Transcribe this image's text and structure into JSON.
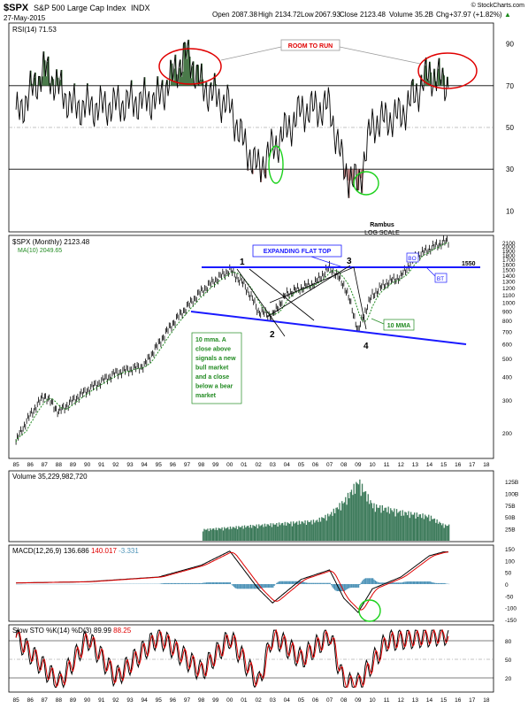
{
  "header": {
    "symbol": "$SPX",
    "name": "S&P 500 Large Cap Index",
    "exchange": "INDX",
    "date": "27-May-2015",
    "open_label": "Open",
    "open": "2087.38",
    "high_label": "High",
    "high": "2134.72",
    "low_label": "Low",
    "low": "2067.93",
    "close_label": "Close",
    "close": "2123.48",
    "volume_label": "Volume",
    "volume": "35.2B",
    "chg_label": "Chg",
    "chg": "+37.97 (+1.82%)",
    "watermark": "© StockCharts.com",
    "up_arrow": "▲"
  },
  "rsi_panel": {
    "legend": "RSI(14) 71.53",
    "ticks": [
      "90",
      "70",
      "50",
      "30",
      "10"
    ],
    "annotation": "ROOM TO RUN"
  },
  "price_panel": {
    "legend_main": "$SPX (Monthly) 2123.48",
    "legend_ma": "MA(10) 2049.65",
    "author": "Rambus",
    "scale_note": "LOG SCALE",
    "title_box": "EXPANDING FLAT TOP",
    "level_label": "1550",
    "bo_label": "BO",
    "bt_label": "BT",
    "mma_label": "10 MMA",
    "note_lines": [
      "10 mma. A",
      "close above",
      "signals a new",
      "bull market",
      "and a close",
      "below a bear",
      "market"
    ],
    "points": [
      "1",
      "2",
      "3",
      "4"
    ],
    "yticks": [
      "2100",
      "2000",
      "1900",
      "1800",
      "1700",
      "1600",
      "1500",
      "1400",
      "1300",
      "1200",
      "1100",
      "1000",
      "900",
      "800",
      "700",
      "600",
      "500",
      "400",
      "300",
      "200"
    ]
  },
  "x_axis_labels": [
    "85",
    "86",
    "87",
    "88",
    "89",
    "90",
    "91",
    "92",
    "93",
    "94",
    "95",
    "96",
    "97",
    "98",
    "99",
    "00",
    "01",
    "02",
    "03",
    "04",
    "05",
    "06",
    "07",
    "08",
    "09",
    "10",
    "11",
    "12",
    "13",
    "14",
    "15",
    "16",
    "17",
    "18"
  ],
  "volume_panel": {
    "legend": "Volume 35,229,982,720",
    "ticks": [
      "125B",
      "100B",
      "75B",
      "50B",
      "25B"
    ]
  },
  "macd_panel": {
    "legend_name": "MACD(12,26,9)",
    "macd_value": "136.686",
    "signal_value": "140.017",
    "hist_value": "-3.331",
    "ticks": [
      "150",
      "100",
      "50",
      "0",
      "-50",
      "-100",
      "-150"
    ]
  },
  "sto_panel": {
    "legend_name": "Slow STO %K(14) %D(3)",
    "k_value": "89.99",
    "d_value": "88.25",
    "ticks": [
      "80",
      "50",
      "20"
    ]
  },
  "colors": {
    "accent_blue": "#1a1aff",
    "ma_green": "#228b22",
    "annotation_red": "#e00000",
    "volume_green": "#3c7a5a",
    "macd_hist": "#4f94b8",
    "rsi_fill": "#4a7a4a",
    "rsi_fill_low": "#b77c7c"
  },
  "chart_data": [
    {
      "type": "line",
      "name_printed": "RSI(14)",
      "x_years": [
        1985,
        1987,
        1989,
        1991,
        1993,
        1995,
        1997,
        1998,
        2000,
        2001,
        2002,
        2003,
        2005,
        2007,
        2008,
        2009,
        2010,
        2012,
        2014,
        2015
      ],
      "values": [
        55,
        78,
        60,
        60,
        62,
        64,
        86,
        70,
        60,
        42,
        30,
        40,
        58,
        60,
        30,
        22,
        52,
        56,
        76,
        71.53
      ],
      "ylim": [
        0,
        100
      ],
      "reference_lines": [
        70,
        50,
        30
      ]
    },
    {
      "type": "line",
      "series": [
        {
          "name": "$SPX",
          "x_years": [
            1985,
            1987,
            1988,
            1990,
            1992,
            1994,
            1995,
            1997,
            1998,
            2000,
            2001,
            2002,
            2003,
            2004,
            2006,
            2007,
            2008,
            2009,
            2010,
            2011,
            2012,
            2013,
            2014,
            2015
          ],
          "values": [
            180,
            320,
            260,
            340,
            420,
            460,
            600,
            950,
            1150,
            1500,
            1250,
            900,
            850,
            1120,
            1280,
            1550,
            1250,
            700,
            1100,
            1280,
            1380,
            1750,
            1950,
            2123.48
          ]
        }
      ],
      "scale": "log",
      "ylim": [
        150,
        2200
      ],
      "reference_lines": [
        1550
      ]
    },
    {
      "type": "bar",
      "name_printed": "Volume",
      "unit": "B",
      "x_years": [
        1998,
        2000,
        2002,
        2004,
        2006,
        2007,
        2008,
        2009,
        2010,
        2012,
        2013,
        2014,
        2015
      ],
      "values": [
        25,
        30,
        35,
        40,
        45,
        60,
        90,
        135,
        80,
        65,
        60,
        55,
        35
      ],
      "ylim": [
        0,
        140
      ]
    },
    {
      "type": "line",
      "name_printed": "MACD(12,26,9)",
      "x_years": [
        1985,
        1990,
        1995,
        1998,
        2000,
        2002,
        2003,
        2005,
        2007,
        2008,
        2009,
        2010,
        2012,
        2014,
        2015
      ],
      "values": [
        5,
        10,
        30,
        80,
        140,
        -20,
        -80,
        20,
        60,
        -60,
        -120,
        -20,
        30,
        120,
        136.686
      ],
      "ylim": [
        -150,
        150
      ]
    },
    {
      "type": "line",
      "name_printed": "Slow STO %K(14) %D(3)",
      "x_years": [
        1985,
        1988,
        1990,
        1992,
        1995,
        1998,
        2000,
        2002,
        2003,
        2005,
        2007,
        2008,
        2009,
        2011,
        2013,
        2015
      ],
      "values": [
        85,
        10,
        85,
        20,
        88,
        30,
        85,
        10,
        90,
        50,
        90,
        10,
        10,
        80,
        85,
        89.99
      ],
      "ylim": [
        0,
        100
      ],
      "reference_lines": [
        80,
        50,
        20
      ]
    }
  ]
}
